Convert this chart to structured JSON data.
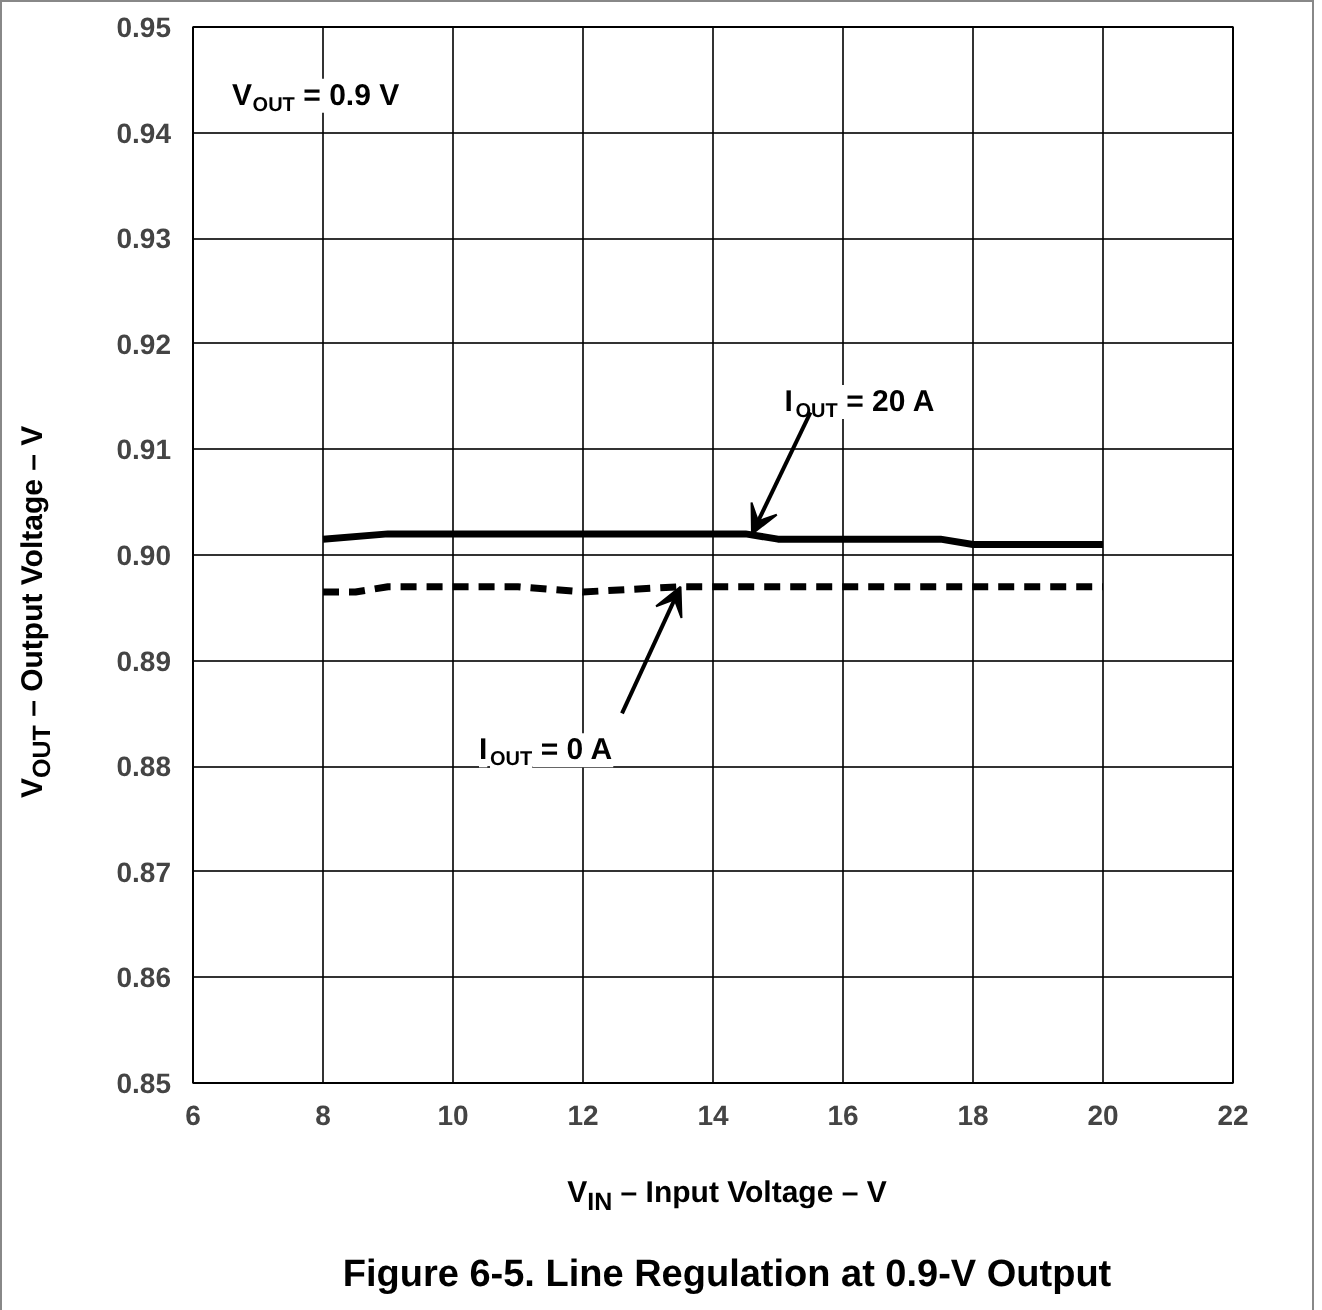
{
  "chart_data": {
    "type": "line",
    "title": "Figure 6-5. Line Regulation at 0.9-V Output",
    "xlabel": "V$_{IN}$ – Input Voltage – V",
    "ylabel": "V$_{OUT}$ – Output Voltage – V",
    "xlim": [
      6,
      22
    ],
    "xticks": [
      6,
      8,
      10,
      12,
      14,
      16,
      18,
      20,
      22
    ],
    "ylim": [
      0.85,
      0.95
    ],
    "yticks": [
      0.85,
      0.86,
      0.87,
      0.88,
      0.89,
      {
        "value": 0.9,
        "label": "0.90"
      },
      0.91,
      0.92,
      0.93,
      0.94,
      0.95
    ],
    "grid": true,
    "marker": "none",
    "series": [
      {
        "color": "#000000",
        "line_style": "solid",
        "x": [
          8,
          9,
          14.5,
          15,
          17.5,
          18,
          20
        ],
        "values": [
          0.9015,
          0.902,
          0.902,
          0.9015,
          0.9015,
          0.901,
          0.901
        ]
      },
      {
        "color": "#000000",
        "line_style": "dashed",
        "x": [
          8,
          8.5,
          9,
          11,
          12,
          13.5,
          20
        ],
        "values": [
          0.8965,
          0.8965,
          0.897,
          0.897,
          0.8965,
          0.897,
          0.897
        ]
      }
    ],
    "annotations": [
      {
        "text": "V$_{OUT}$ = 0.9 V"
      },
      {
        "text": "I$_{OUT}$ = 20 A",
        "x": 14.6,
        "y": 0.902
      },
      {
        "text": "I$_{OUT}$ = 0 A",
        "x": 13.5,
        "y": 0.897
      }
    ]
  }
}
